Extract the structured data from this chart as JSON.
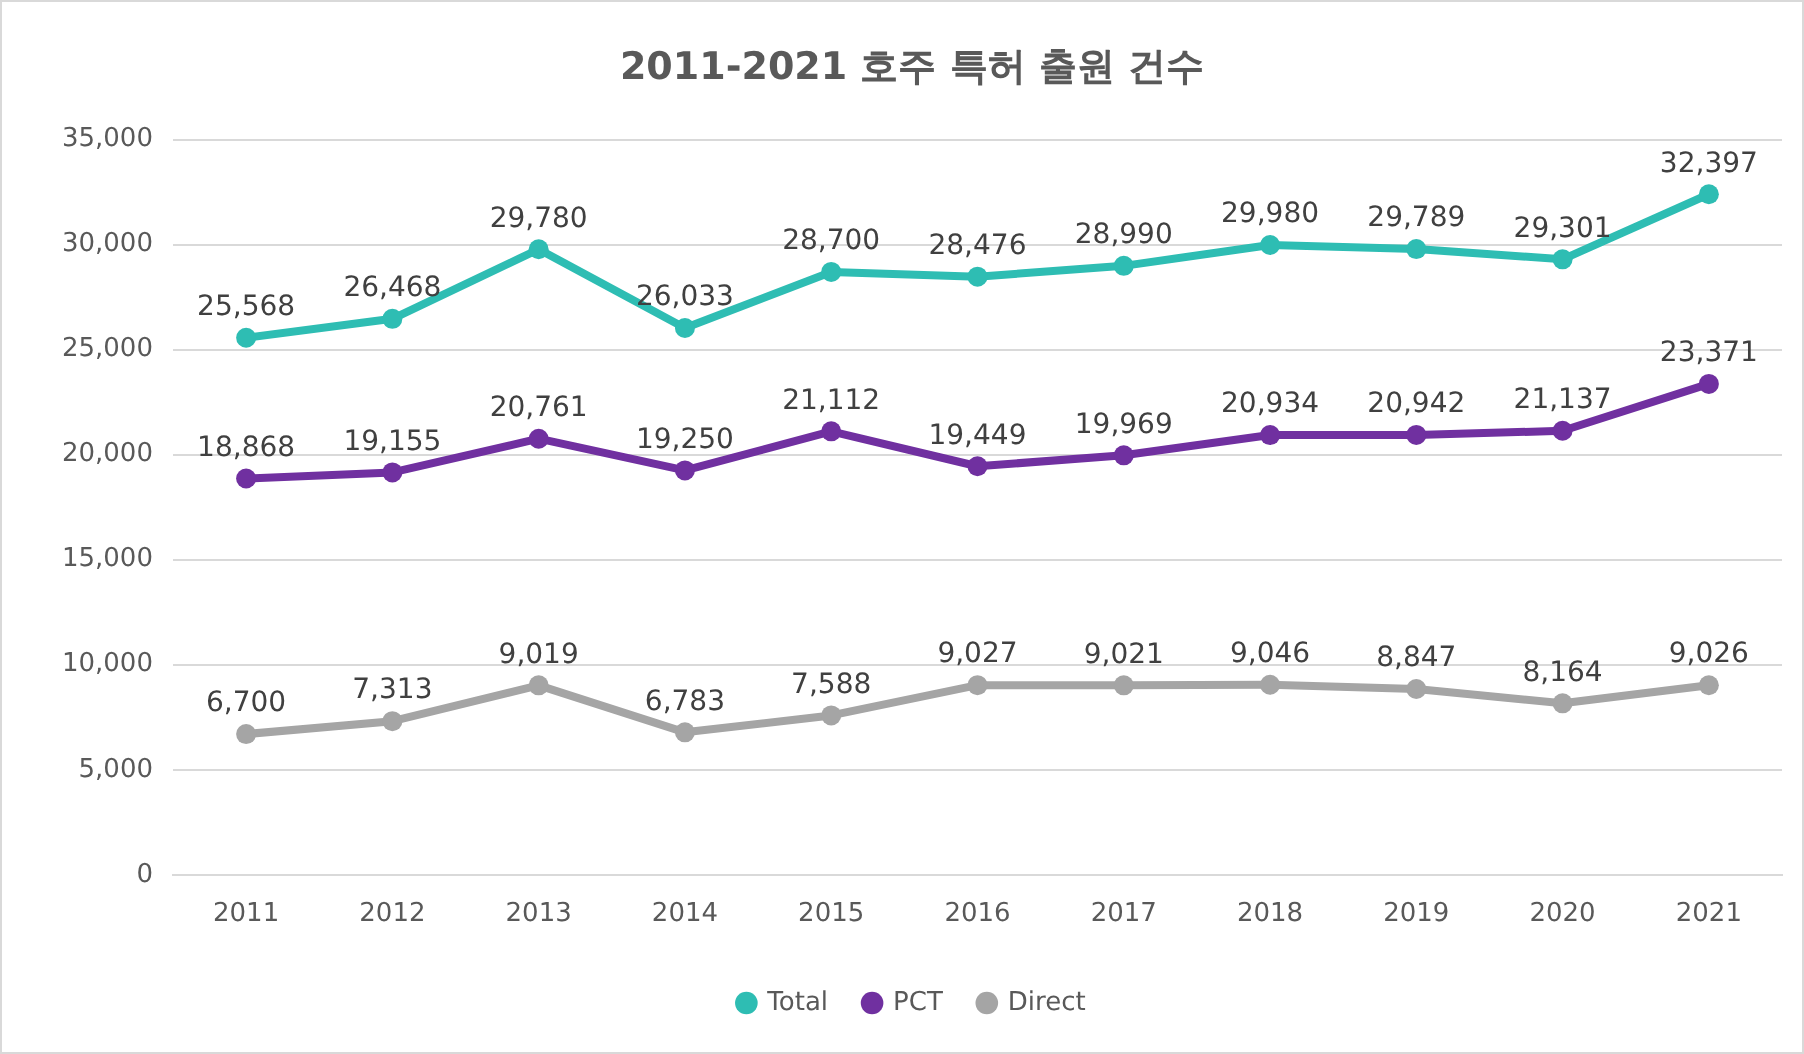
{
  "chart_data": {
    "type": "line",
    "title": "2011-2021 호주 특허 출원 건수",
    "categories": [
      "2011",
      "2012",
      "2013",
      "2014",
      "2015",
      "2016",
      "2017",
      "2018",
      "2019",
      "2020",
      "2021"
    ],
    "series": [
      {
        "name": "Total",
        "color": "#2ebdb3",
        "values": [
          25568,
          26468,
          29780,
          26033,
          28700,
          28476,
          28990,
          29980,
          29789,
          29301,
          32397
        ],
        "value_labels": [
          "25,568",
          "26,468",
          "29,780",
          "26,033",
          "28,700",
          "28,476",
          "28,990",
          "29,980",
          "29,789",
          "29,301",
          "32,397"
        ]
      },
      {
        "name": "PCT",
        "color": "#7030a0",
        "values": [
          18868,
          19155,
          20761,
          19250,
          21112,
          19449,
          19969,
          20934,
          20942,
          21137,
          23371
        ],
        "value_labels": [
          "18,868",
          "19,155",
          "20,761",
          "19,250",
          "21,112",
          "19,449",
          "19,969",
          "20,934",
          "20,942",
          "21,137",
          "23,371"
        ]
      },
      {
        "name": "Direct",
        "color": "#a5a5a5",
        "values": [
          6700,
          7313,
          9019,
          6783,
          7588,
          9027,
          9021,
          9046,
          8847,
          8164,
          9026
        ],
        "value_labels": [
          "6,700",
          "7,313",
          "9,019",
          "6,783",
          "7,588",
          "9,027",
          "9,021",
          "9,046",
          "8,847",
          "8,164",
          "9,026"
        ]
      }
    ],
    "ylim": [
      0,
      35000
    ],
    "yticks": [
      {
        "value": 0,
        "label": "0"
      },
      {
        "value": 5000,
        "label": "5,000"
      },
      {
        "value": 10000,
        "label": "10,000"
      },
      {
        "value": 15000,
        "label": "15,000"
      },
      {
        "value": 20000,
        "label": "20,000"
      },
      {
        "value": 25000,
        "label": "25,000"
      },
      {
        "value": 30000,
        "label": "30,000"
      },
      {
        "value": 35000,
        "label": "35,000"
      }
    ],
    "grid": "y",
    "legend": "bottom",
    "marker": "circle",
    "line_style": "solid"
  }
}
